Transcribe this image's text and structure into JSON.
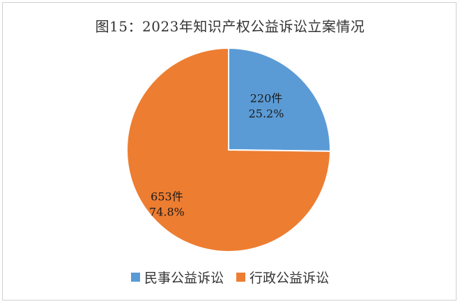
{
  "chart_data": {
    "type": "pie",
    "title": "图15：2023年知识产权公益诉讼立案情况",
    "categories": [
      "民事公益诉讼",
      "行政公益诉讼"
    ],
    "values": [
      220,
      653
    ],
    "value_labels": [
      "220件",
      "653件"
    ],
    "percent_labels": [
      "25.2%",
      "74.8%"
    ],
    "colors": [
      "#5b9bd5",
      "#ed7d31"
    ],
    "legend_position": "bottom"
  }
}
